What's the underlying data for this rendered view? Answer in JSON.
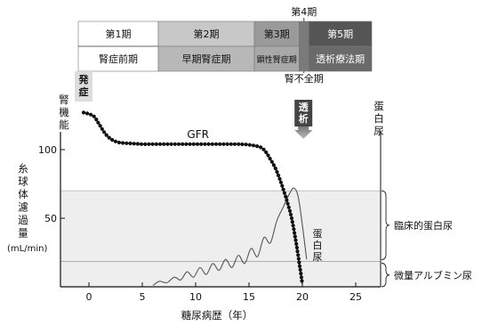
{
  "chart_data": {
    "type": "line",
    "xlabel": "糖尿病歴（年）",
    "ylabel_top": "腎機能",
    "ylabel_chars": [
      "糸",
      "球",
      "体",
      "濾",
      "過",
      "量"
    ],
    "yunit": "(mL/min)",
    "right_axis_label": [
      "蛋",
      "白",
      "尿"
    ],
    "xlim": [
      -3,
      27
    ],
    "ylim": [
      0,
      130
    ],
    "x_ticks": [
      0,
      5,
      10,
      15,
      20,
      25
    ],
    "y_ticks": [
      50,
      100
    ],
    "series": [
      {
        "name": "GFR",
        "x": [
          -0.5,
          0,
          0.5,
          1,
          1.5,
          2,
          2.5,
          3,
          4,
          5,
          6,
          8,
          10,
          12,
          14,
          15,
          16,
          16.5,
          17,
          17.5,
          18,
          18.5,
          19,
          19.5,
          20
        ],
        "y": [
          127,
          126,
          124,
          118,
          112,
          108,
          106,
          105,
          104.5,
          104,
          104,
          104,
          104,
          104,
          104,
          103.5,
          102,
          99,
          93,
          86,
          76,
          64,
          50,
          28,
          2
        ]
      },
      {
        "name": "蛋白尿",
        "x": [
          6,
          6.6,
          7.3,
          8.0,
          8.6,
          9.2,
          9.8,
          10.4,
          11.0,
          11.6,
          12.2,
          12.8,
          13.4,
          14.0,
          14.6,
          15.2,
          15.8,
          16.4,
          17.0,
          17.6,
          18.2,
          18.8,
          19.2,
          19.6,
          20.0,
          20.4
        ],
        "y": [
          1,
          4,
          3,
          7,
          5,
          11,
          7,
          14,
          9,
          17,
          12,
          20,
          14,
          23,
          17,
          28,
          22,
          36,
          32,
          48,
          58,
          68,
          72,
          66,
          45,
          20
        ]
      }
    ],
    "bands": [
      {
        "label": "臨床的蛋白尿",
        "y_range": [
          18.5,
          70
        ]
      },
      {
        "label": "微量アルブミン尿",
        "y_range": [
          0,
          18.5
        ]
      }
    ],
    "annotations": {
      "onset": [
        "発",
        "症"
      ],
      "dialysis": [
        "透",
        "析"
      ],
      "gfr_label": "GFR",
      "protein_curve_label": [
        "蛋",
        "白",
        "尿"
      ]
    },
    "stages": [
      {
        "label": "第1期",
        "name": "腎症前期",
        "x_range": [
          -1,
          6.5
        ]
      },
      {
        "label": "第2期",
        "name": "早期腎症期",
        "x_range": [
          6.5,
          15.5
        ]
      },
      {
        "label": "第3期",
        "name": "顕性腎症期",
        "x_range": [
          15.5,
          19.7
        ]
      },
      {
        "label": "第4期",
        "name": "腎不全期",
        "x_range": [
          19.7,
          20.6
        ]
      },
      {
        "label": "第5期",
        "name": "透析療法期",
        "x_range": [
          20.6,
          26.5
        ]
      }
    ]
  }
}
